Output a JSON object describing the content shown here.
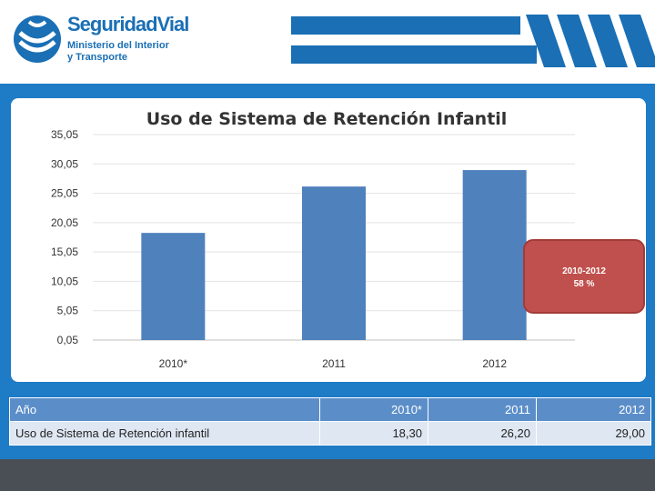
{
  "header": {
    "brand": "SeguridadVial",
    "subtitle_line1": "Ministerio del Interior",
    "subtitle_line2": "y Transporte",
    "brand_color": "#1a6fb5"
  },
  "chart_data": {
    "type": "bar",
    "title": "Uso de Sistema de Retención Infantil",
    "categories": [
      "2010*",
      "2011",
      "2012"
    ],
    "values": [
      18.3,
      26.2,
      29.0
    ],
    "ylim": [
      0.05,
      35.05
    ],
    "yticks": [
      "35,05",
      "30,05",
      "25,05",
      "20,05",
      "15,05",
      "10,05",
      "5,05",
      "0,05"
    ],
    "ytick_values": [
      35.05,
      30.05,
      25.05,
      20.05,
      15.05,
      10.05,
      5.05,
      0.05
    ],
    "bar_color": "#4f81bd",
    "annotation": {
      "line1": "2010-2012",
      "line2": "58 %",
      "color": "#c0504d"
    }
  },
  "table": {
    "header": [
      "Año",
      "2010*",
      "2011",
      "2012"
    ],
    "row_label": "Uso de Sistema de Retención infantil",
    "row_values": [
      "18,30",
      "26,20",
      "29,00"
    ]
  }
}
